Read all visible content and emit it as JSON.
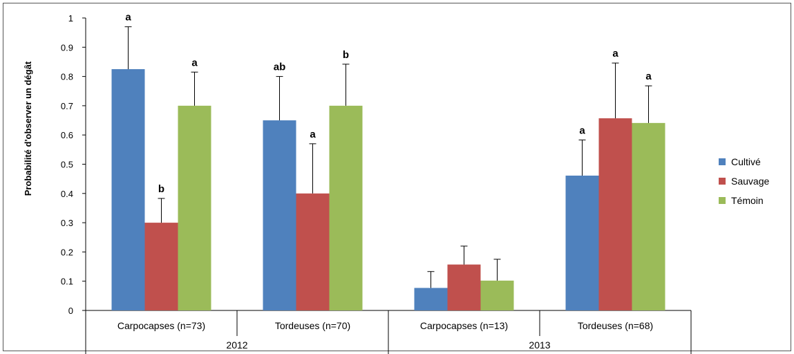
{
  "chart_data": {
    "type": "bar",
    "ylabel": "Probabilité d'observer un dégât",
    "ylim": [
      0,
      1
    ],
    "yticks": [
      "0",
      "0.1",
      "0.2",
      "0.3",
      "0.4",
      "0.5",
      "0.6",
      "0.7",
      "0.8",
      "0.9",
      "1"
    ],
    "grid": false,
    "legend_position": "right",
    "categories": [
      "Carpocapses (n=73)",
      "Tordeuses (n=70)",
      "Carpocapses (n=13)",
      "Tordeuses (n=68)"
    ],
    "groups": [
      {
        "label": "2012",
        "span": 2
      },
      {
        "label": "2013",
        "span": 2
      }
    ],
    "series": [
      {
        "name": "Cultivé",
        "color": "#4f81bd",
        "values": [
          0.825,
          0.65,
          0.077,
          0.461
        ],
        "errors": [
          0.97,
          0.8,
          0.133,
          0.583
        ],
        "labels": [
          "a",
          "ab",
          "",
          "a"
        ]
      },
      {
        "name": "Sauvage",
        "color": "#c0504d",
        "values": [
          0.3,
          0.4,
          0.157,
          0.657
        ],
        "errors": [
          0.383,
          0.57,
          0.22,
          0.846
        ],
        "labels": [
          "b",
          "a",
          "",
          "a"
        ]
      },
      {
        "name": "Témoin",
        "color": "#9bbb59",
        "values": [
          0.7,
          0.7,
          0.102,
          0.641
        ],
        "errors": [
          0.815,
          0.842,
          0.175,
          0.768
        ],
        "labels": [
          "a",
          "b",
          "",
          "a"
        ]
      }
    ]
  }
}
